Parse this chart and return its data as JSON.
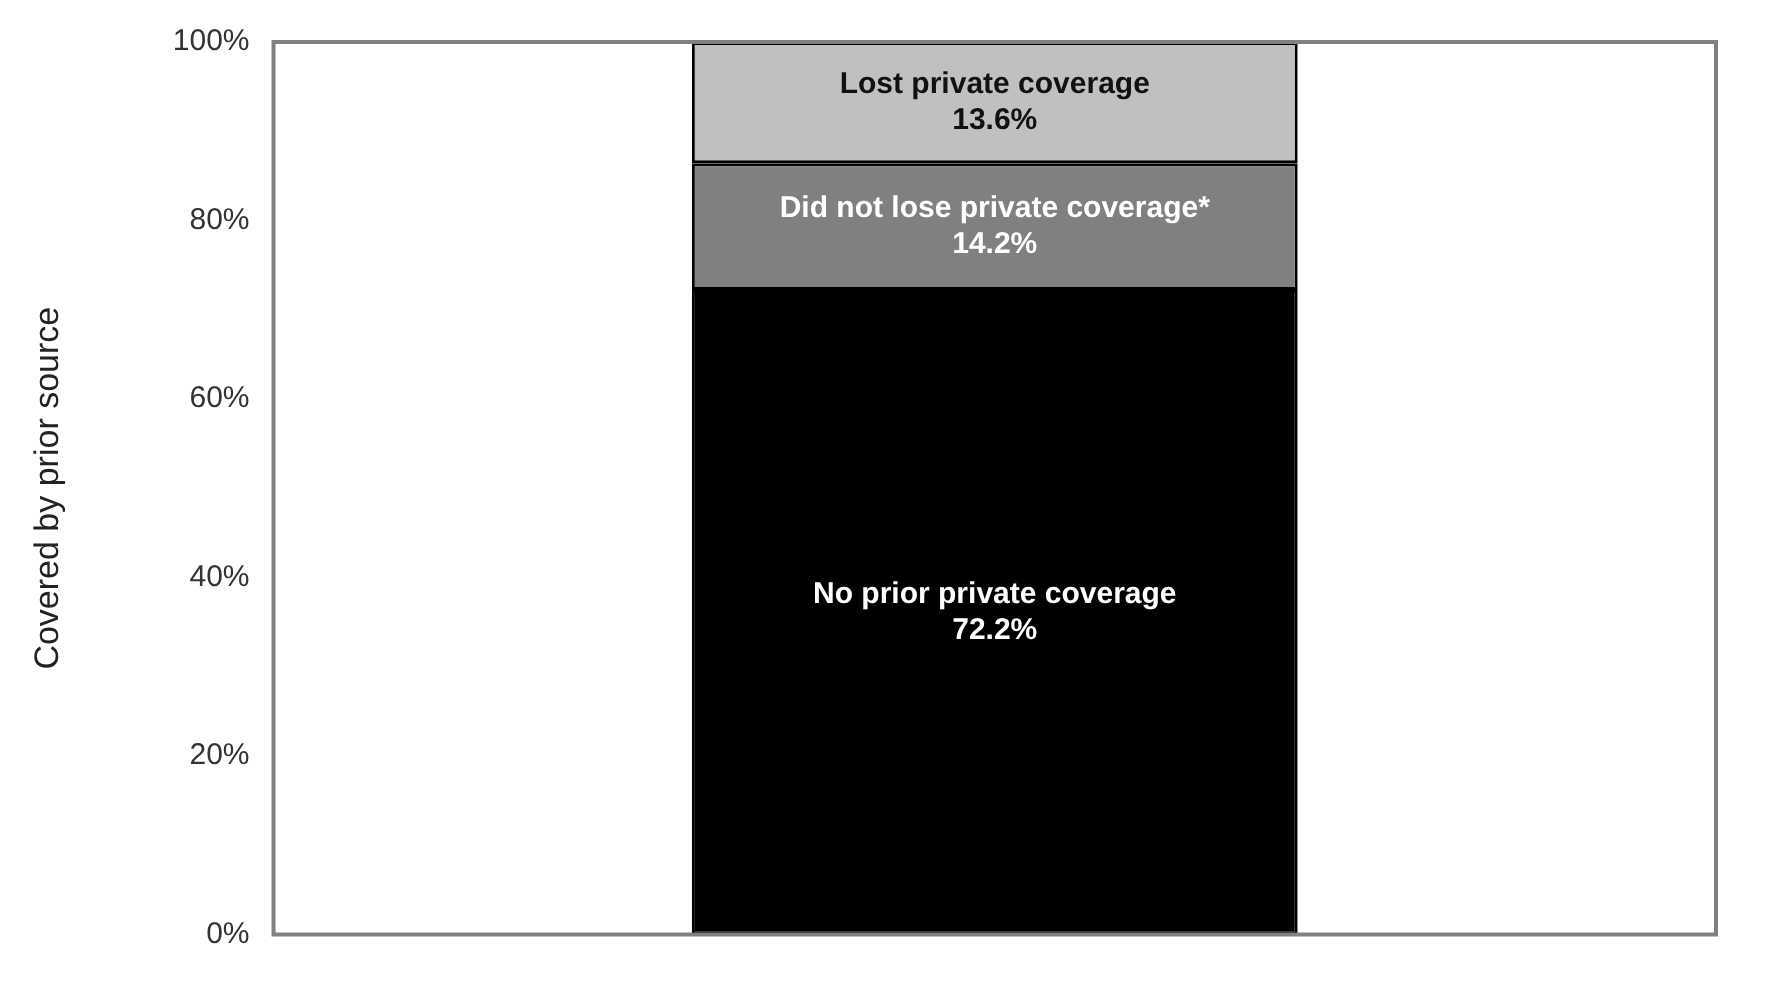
{
  "chart_data": {
    "type": "bar",
    "stacked": true,
    "ylabel": "Covered by prior source",
    "categories": [
      null
    ],
    "series": [
      {
        "name": "No prior private coverage",
        "color": "#000000",
        "values": [
          72.2
        ],
        "value_labels": [
          "72.2%"
        ]
      },
      {
        "name": "Did not lose private coverage*",
        "color": "#808080",
        "values": [
          14.2
        ],
        "value_labels": [
          "14.2%"
        ]
      },
      {
        "name": "Lost private coverage",
        "color": "#c0c0c0",
        "values": [
          13.6
        ],
        "value_labels": [
          "13.6%"
        ]
      }
    ],
    "ylim": [
      0,
      100
    ],
    "yticks": [
      {
        "value": 0,
        "label": "0%"
      },
      {
        "value": 20,
        "label": "20%"
      },
      {
        "value": 40,
        "label": "40%"
      },
      {
        "value": 60,
        "label": "60%"
      },
      {
        "value": 80,
        "label": "80%"
      },
      {
        "value": 100,
        "label": "100%"
      }
    ],
    "grid": false,
    "legend": false
  }
}
